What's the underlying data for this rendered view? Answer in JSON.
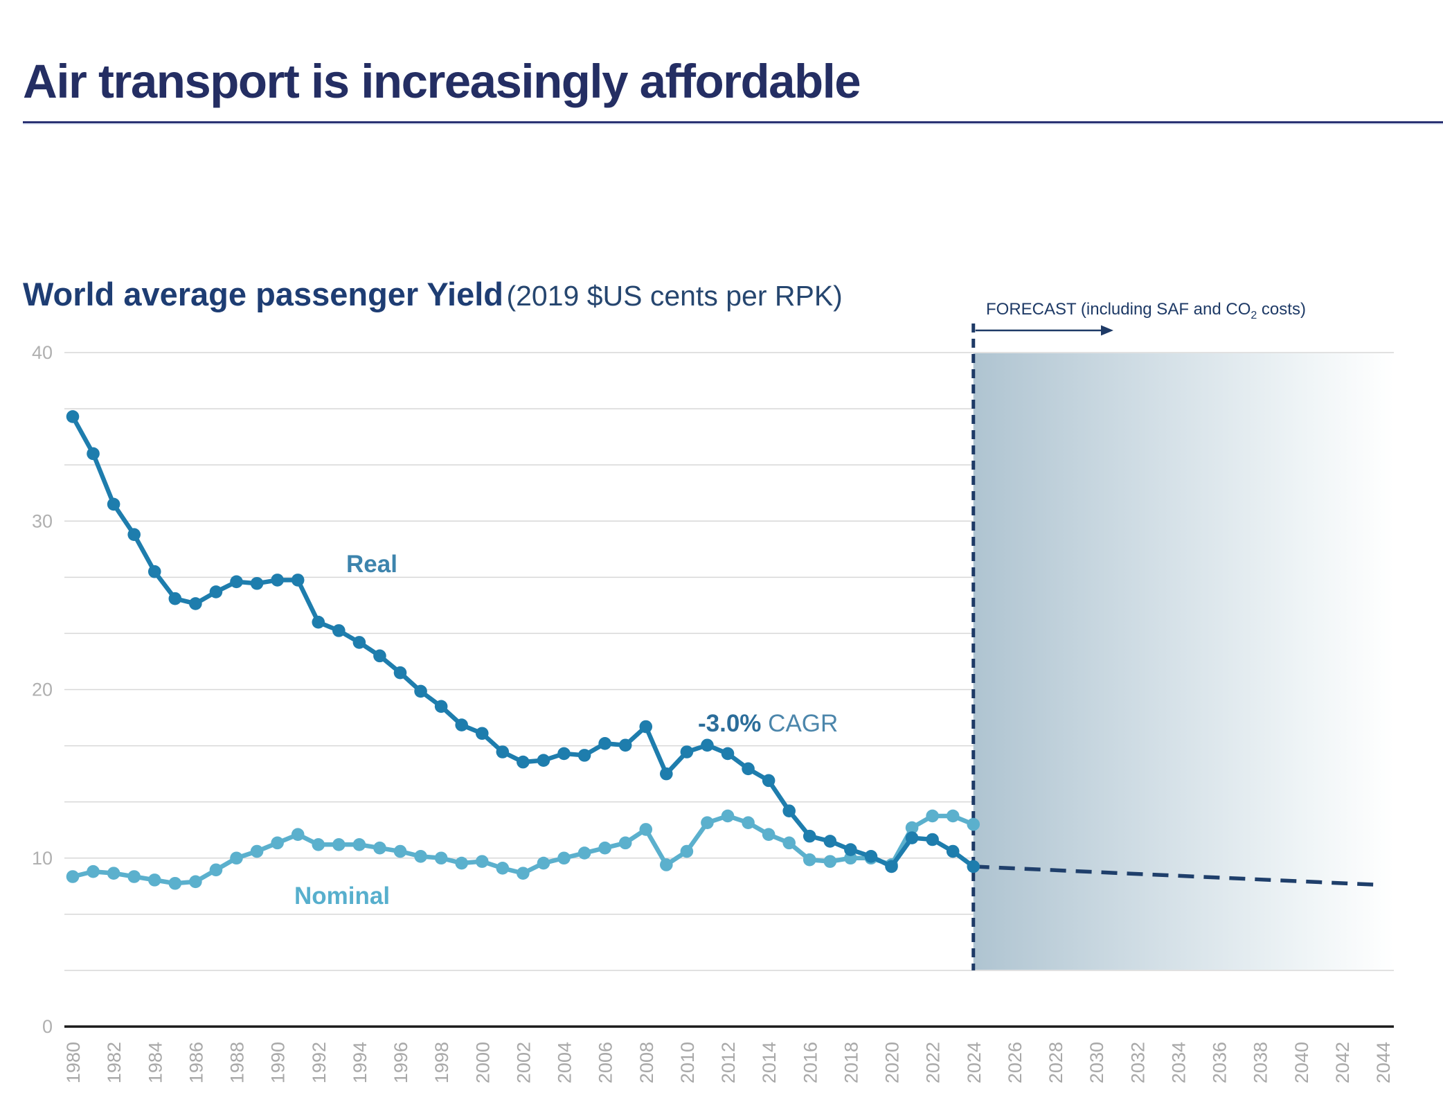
{
  "header": {
    "title": "Air transport is increasingly affordable"
  },
  "colors": {
    "title_navy": "#242e63",
    "chart_title_navy": "#1e3d73",
    "forecast_navy": "#1e3a66",
    "real_line": "#1e7dad",
    "nominal_line": "#5bb0cd",
    "real_label": "#3d84ad",
    "nominal_label": "#57afcd",
    "gridline_gray": "#d7d7d7",
    "tick_gray": "#a8a8a8",
    "forecast_gradient_left": "#afc4d1"
  },
  "chart_data": {
    "type": "line",
    "title": "World average passenger Yield",
    "subtitle": "(2019 $US cents per RPK)",
    "annotations": {
      "forecast_before_sub": "FORECAST (including SAF and CO",
      "forecast_sub": "2",
      "forecast_after_sub": " costs)",
      "cagr_bold": "-3.0%",
      "cagr_rest": " CAGR",
      "real_label": "Real",
      "nominal_label": "Nominal"
    },
    "x": [
      1980,
      1981,
      1982,
      1983,
      1984,
      1985,
      1986,
      1987,
      1988,
      1989,
      1990,
      1991,
      1992,
      1993,
      1994,
      1995,
      1996,
      1997,
      1998,
      1999,
      2000,
      2001,
      2002,
      2003,
      2004,
      2005,
      2006,
      2007,
      2008,
      2009,
      2010,
      2011,
      2012,
      2013,
      2014,
      2015,
      2016,
      2017,
      2018,
      2019,
      2020,
      2021,
      2022,
      2023,
      2024
    ],
    "series": [
      {
        "name": "Real",
        "color": "#1e7dad",
        "values": [
          36.2,
          34.0,
          31.0,
          29.2,
          27.0,
          25.4,
          25.1,
          25.8,
          26.4,
          26.3,
          26.5,
          26.5,
          24.0,
          23.5,
          22.8,
          22.0,
          21.0,
          19.9,
          19.0,
          17.9,
          17.4,
          16.3,
          15.7,
          15.8,
          16.2,
          16.1,
          16.8,
          16.7,
          17.8,
          15.0,
          16.3,
          16.7,
          16.2,
          15.3,
          14.6,
          12.8,
          11.3,
          11.0,
          10.5,
          10.1,
          9.5,
          11.2,
          11.1,
          10.4,
          9.5
        ]
      },
      {
        "name": "Nominal",
        "color": "#5bb0cd",
        "values": [
          8.9,
          9.2,
          9.1,
          8.9,
          8.7,
          8.5,
          8.6,
          9.3,
          10.0,
          10.4,
          10.9,
          11.4,
          10.8,
          10.8,
          10.8,
          10.6,
          10.4,
          10.1,
          10.0,
          9.7,
          9.8,
          9.4,
          9.1,
          9.7,
          10.0,
          10.3,
          10.6,
          10.9,
          11.7,
          9.6,
          10.4,
          12.1,
          12.5,
          12.1,
          11.4,
          10.9,
          9.9,
          9.8,
          10.0,
          10.0,
          9.6,
          11.8,
          12.5,
          12.5,
          12.0
        ]
      }
    ],
    "forecast": {
      "type": "dashed-line",
      "x": [
        2024,
        2044
      ],
      "values": [
        9.5,
        8.4
      ],
      "color": "#1f3f6b",
      "region_start_x": 2024,
      "region_note": "shaded gradient band fading to white on the right"
    },
    "x_ticks": [
      1980,
      1982,
      1984,
      1986,
      1988,
      1990,
      1992,
      1994,
      1996,
      1998,
      2000,
      2002,
      2004,
      2006,
      2008,
      2010,
      2012,
      2014,
      2016,
      2018,
      2020,
      2022,
      2024,
      2026,
      2028,
      2030,
      2032,
      2034,
      2036,
      2038,
      2040,
      2042,
      2044
    ],
    "y_ticks": [
      0,
      10,
      20,
      30,
      40
    ],
    "ylim": [
      0,
      40
    ],
    "xlim": [
      1980,
      2045
    ],
    "grid": "horizontal gridlines every 10/3 units, solid black baseline at 0",
    "legend": "inline series labels (Real, Nominal)"
  }
}
